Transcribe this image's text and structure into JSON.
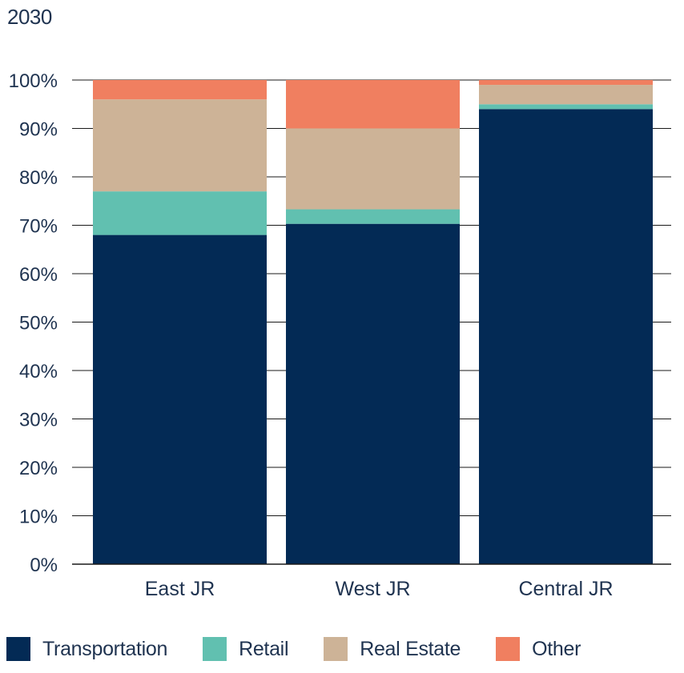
{
  "chart_data": {
    "type": "bar",
    "stacked": true,
    "title": "2030",
    "xlabel": "",
    "ylabel": "",
    "ylim": [
      0,
      100
    ],
    "yticks": [
      "0%",
      "10%",
      "20%",
      "30%",
      "40%",
      "50%",
      "60%",
      "70%",
      "80%",
      "90%",
      "100%"
    ],
    "categories": [
      "East JR",
      "West JR",
      "Central JR"
    ],
    "series": [
      {
        "name": "Transportation",
        "color": "#032a55",
        "values": [
          68,
          70.3,
          94
        ]
      },
      {
        "name": "Retail",
        "color": "#61c0b0",
        "values": [
          9,
          3,
          1
        ]
      },
      {
        "name": "Real Estate",
        "color": "#cdb397",
        "values": [
          19,
          16.7,
          4
        ]
      },
      {
        "name": "Other",
        "color": "#f07f60",
        "values": [
          4,
          10,
          1
        ]
      }
    ],
    "grid": true,
    "legend_position": "bottom"
  }
}
